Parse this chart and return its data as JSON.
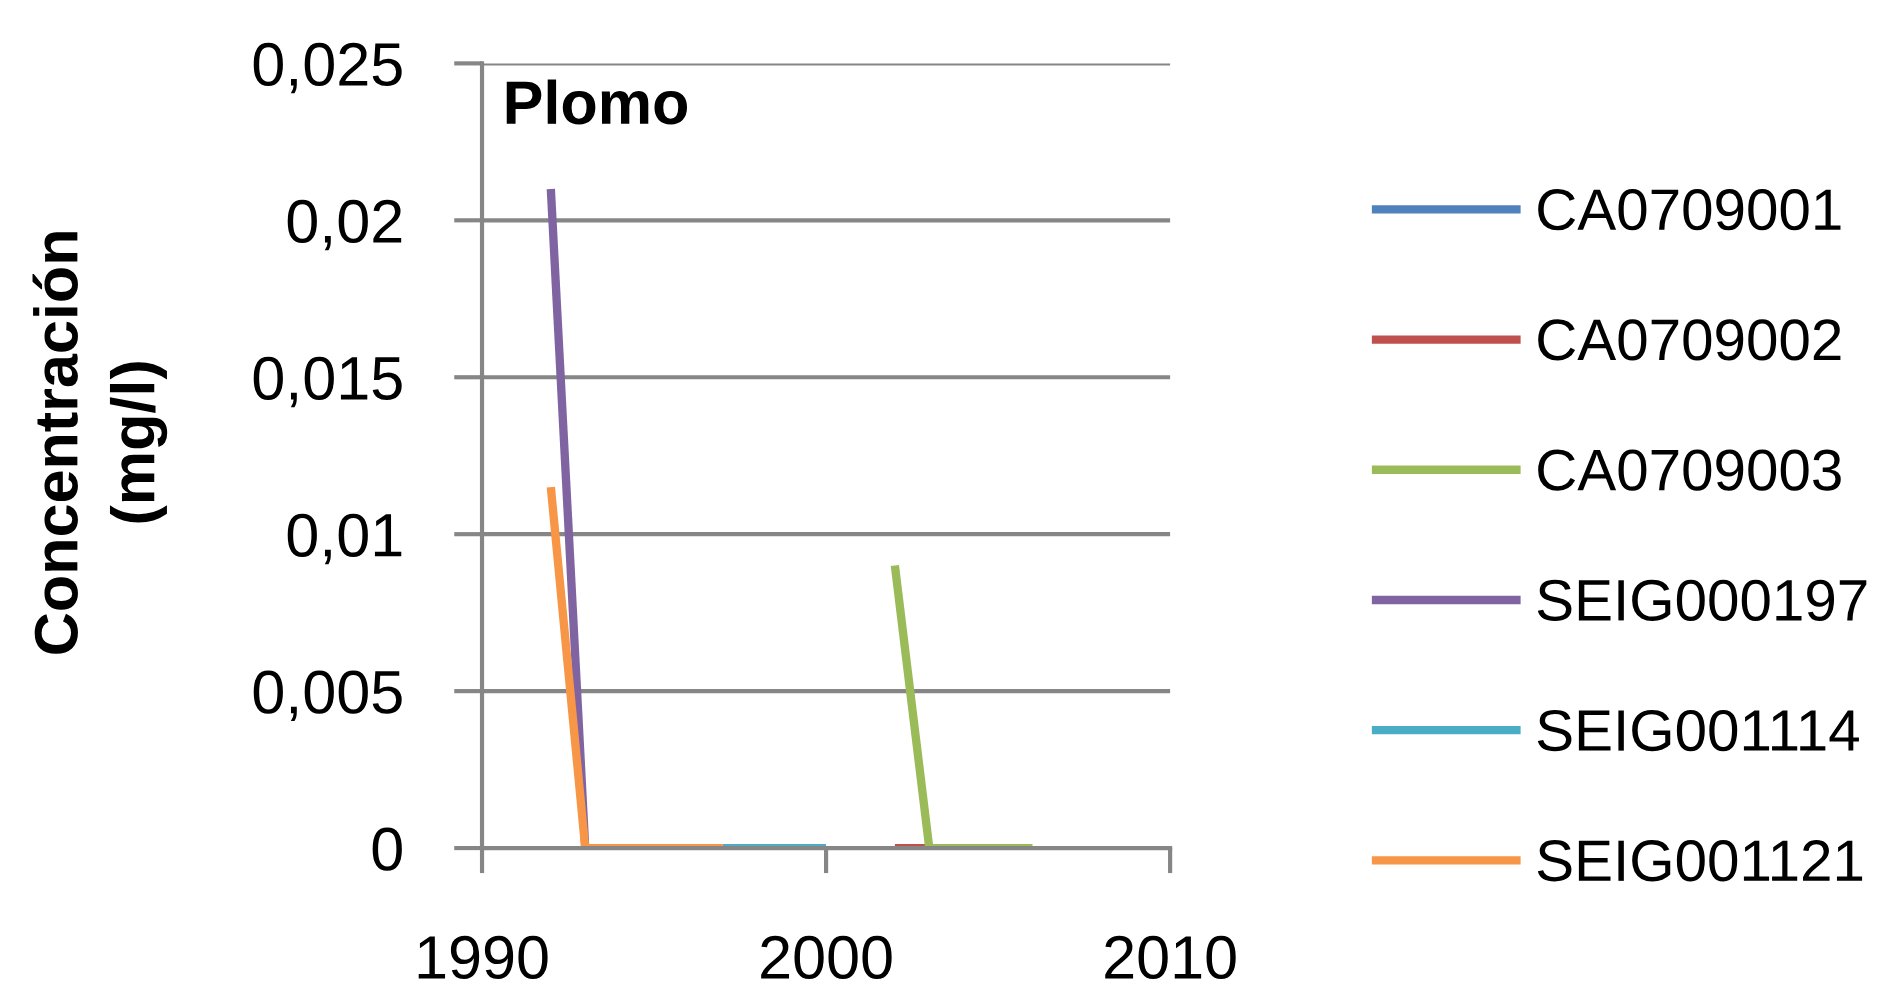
{
  "chart_data": {
    "type": "line",
    "title": "Plomo",
    "ylabel": "Concentración\n(mg/l)",
    "xlim": [
      1990,
      2010
    ],
    "xticks": [
      1990,
      2000,
      2010
    ],
    "ylim": [
      0,
      0.025
    ],
    "yticks": [
      0,
      {
        "value": 0.005,
        "label": "0,005"
      },
      {
        "value": 0.01,
        "label": "0,01"
      },
      {
        "value": 0.015,
        "label": "0,015"
      },
      {
        "value": 0.02,
        "label": "0,02"
      },
      {
        "value": 0.025,
        "label": "0,025"
      }
    ],
    "grid": "y",
    "legend": "right",
    "line_style": "solid",
    "series": [
      {
        "name": "CA0709001",
        "color": "#4f81bd"
      },
      {
        "name": "CA0709002",
        "color": "#c0504d",
        "x": [
          2002,
          2003
        ],
        "values": [
          0,
          0
        ]
      },
      {
        "name": "CA0709003",
        "color": "#9bbb59",
        "x": [
          2002,
          2003,
          2006
        ],
        "values": [
          0.009,
          0,
          0
        ]
      },
      {
        "name": "SEIG000197",
        "color": "#8064a2",
        "x": [
          1992,
          1993
        ],
        "values": [
          0.021,
          0
        ]
      },
      {
        "name": "SEIG001114",
        "color": "#4bacc6",
        "x": [
          1997,
          2000
        ],
        "values": [
          0,
          0
        ]
      },
      {
        "name": "SEIG001121",
        "color": "#f79646",
        "x": [
          1992,
          1993,
          1997
        ],
        "values": [
          0.0115,
          0,
          0
        ]
      }
    ]
  }
}
